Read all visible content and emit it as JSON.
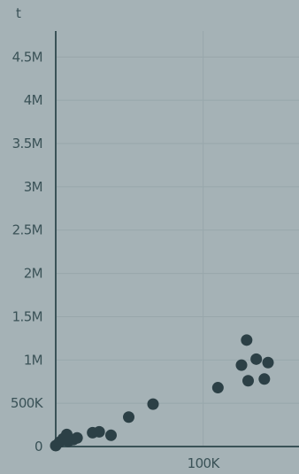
{
  "chart_data": {
    "type": "scatter",
    "ylabel": "t",
    "xlabel": "",
    "xlim": [
      0,
      165000
    ],
    "ylim": [
      0,
      4800000
    ],
    "x_ticks": [
      {
        "value": 100000,
        "label": "100K"
      }
    ],
    "y_ticks": [
      {
        "value": 0,
        "label": "0"
      },
      {
        "value": 500000,
        "label": "500K"
      },
      {
        "value": 1000000,
        "label": "1M"
      },
      {
        "value": 1500000,
        "label": "1.5M"
      },
      {
        "value": 2000000,
        "label": "2M"
      },
      {
        "value": 2500000,
        "label": "2.5M"
      },
      {
        "value": 3000000,
        "label": "3M"
      },
      {
        "value": 3500000,
        "label": "3.5M"
      },
      {
        "value": 4000000,
        "label": "4M"
      },
      {
        "value": 4500000,
        "label": "4.5M"
      }
    ],
    "grid": true,
    "point_color": "#2c4046",
    "series": [
      {
        "points": [
          {
            "x": 0,
            "y": 10000
          },
          {
            "x": 2500,
            "y": 50000
          },
          {
            "x": 5000,
            "y": 90000
          },
          {
            "x": 7500,
            "y": 140000
          },
          {
            "x": 8500,
            "y": 60000
          },
          {
            "x": 12000,
            "y": 80000
          },
          {
            "x": 14500,
            "y": 100000
          },
          {
            "x": 25000,
            "y": 160000
          },
          {
            "x": 29500,
            "y": 170000
          },
          {
            "x": 37500,
            "y": 130000
          },
          {
            "x": 49500,
            "y": 340000
          },
          {
            "x": 66000,
            "y": 490000
          },
          {
            "x": 110000,
            "y": 680000
          },
          {
            "x": 126000,
            "y": 940000
          },
          {
            "x": 129500,
            "y": 1230000
          },
          {
            "x": 130500,
            "y": 760000
          },
          {
            "x": 136000,
            "y": 1010000
          },
          {
            "x": 141500,
            "y": 780000
          },
          {
            "x": 144000,
            "y": 970000
          }
        ]
      }
    ]
  }
}
